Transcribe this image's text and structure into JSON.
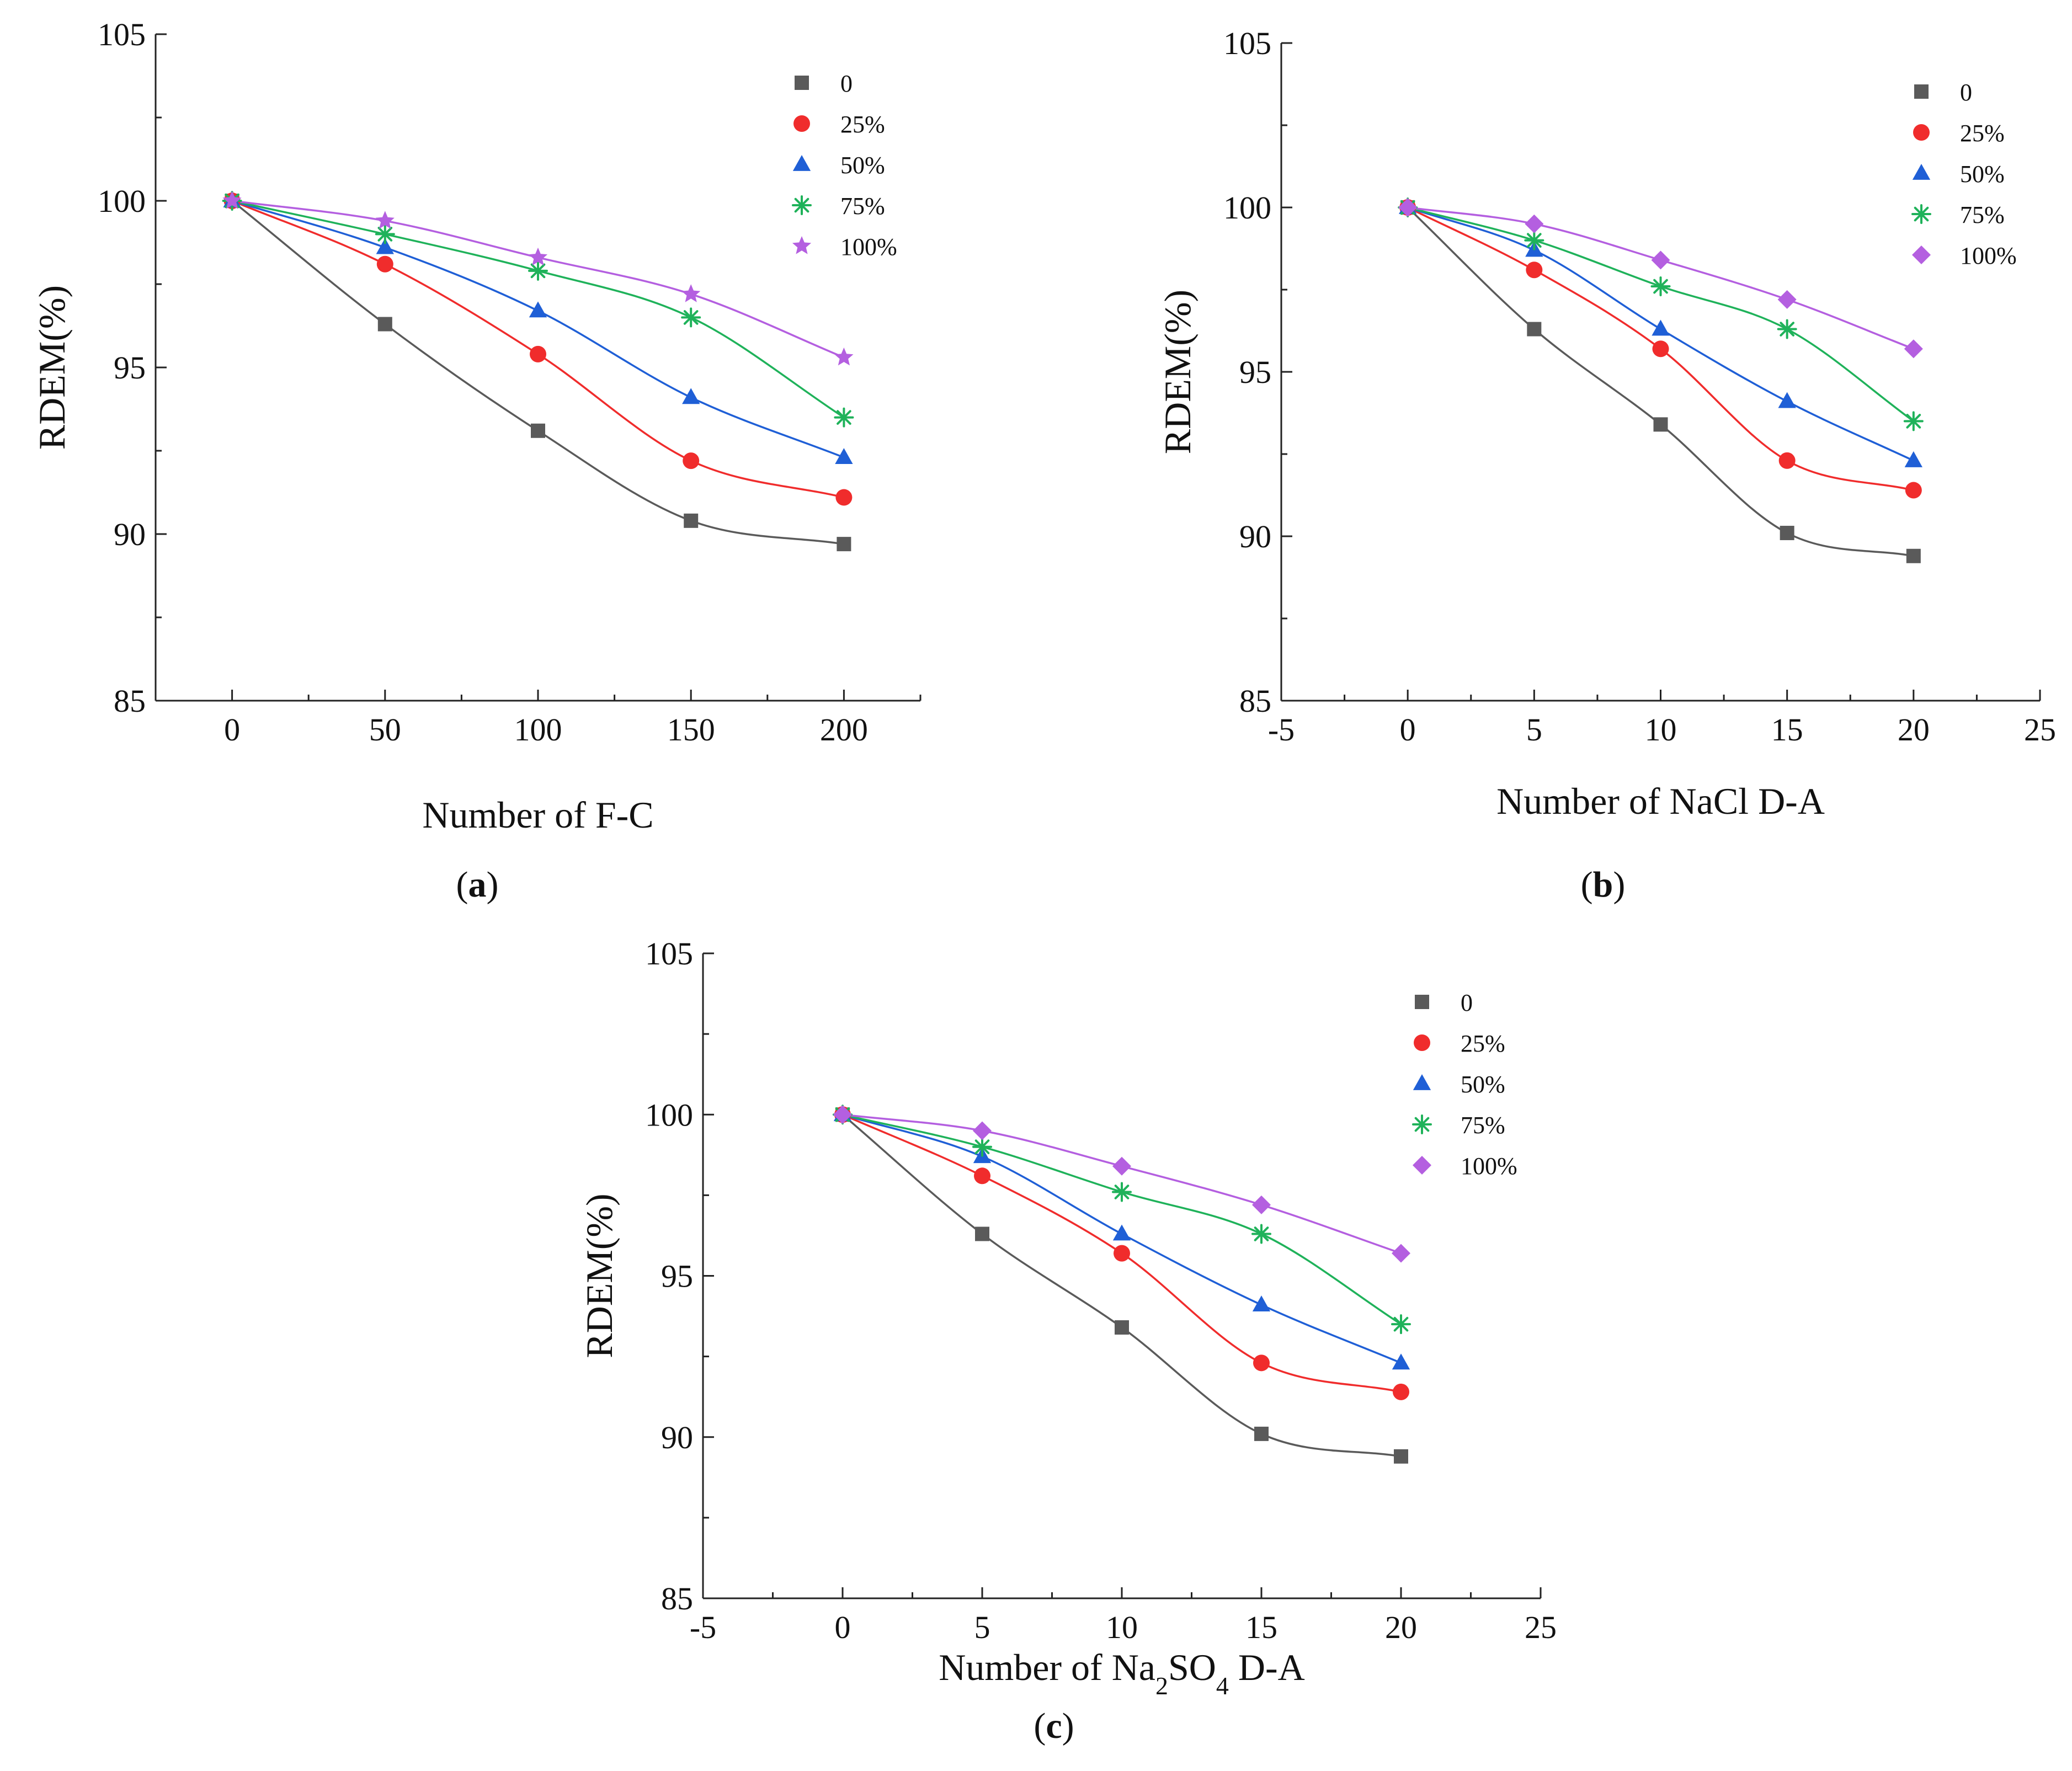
{
  "series_styles": [
    {
      "name": "0",
      "color": "#5a5a5a",
      "marker": "square"
    },
    {
      "name": "25%",
      "color": "#f02c2c",
      "marker": "circle"
    },
    {
      "name": "50%",
      "color": "#1f5fd6",
      "marker": "triangle"
    },
    {
      "name": "75%",
      "color": "#1fb25a",
      "marker": "asterisk"
    },
    {
      "name": "100%",
      "color": "#b45fe0",
      "marker": "star"
    }
  ],
  "chart_data": [
    {
      "type": "scatter",
      "panel_label": "a",
      "title": "",
      "xlabel": "Number of F-C",
      "ylabel": "RDEM(%)",
      "xlim": [
        -25,
        225
      ],
      "ylim": [
        85,
        105
      ],
      "xticks": [
        0,
        50,
        100,
        150,
        200
      ],
      "xtick_labels": [
        "0",
        "50",
        "100",
        "150",
        "200"
      ],
      "yticks": [
        85,
        90,
        95,
        100,
        105
      ],
      "ytick_labels": [
        "85",
        "90",
        "95",
        "100",
        "105"
      ],
      "legend_position": "top-right",
      "x": [
        0,
        50,
        100,
        150,
        200
      ],
      "series": [
        {
          "name": "0",
          "values": [
            100,
            96.3,
            93.1,
            90.4,
            89.7
          ]
        },
        {
          "name": "25%",
          "values": [
            100,
            98.1,
            95.4,
            92.2,
            91.1
          ]
        },
        {
          "name": "50%",
          "values": [
            100,
            98.6,
            96.7,
            94.1,
            92.3
          ]
        },
        {
          "name": "75%",
          "values": [
            100,
            99.0,
            97.9,
            96.5,
            93.5
          ]
        },
        {
          "name": "100%",
          "values": [
            100,
            99.4,
            98.3,
            97.2,
            95.3
          ]
        }
      ]
    },
    {
      "type": "scatter",
      "panel_label": "b",
      "title": "",
      "xlabel": "Number of NaCl D-A",
      "ylabel": "RDEM(%)",
      "xlim": [
        -5,
        25
      ],
      "ylim": [
        85,
        105
      ],
      "xticks": [
        -5,
        0,
        5,
        10,
        15,
        20,
        25
      ],
      "xtick_labels": [
        "-5",
        "0",
        "5",
        "10",
        "15",
        "20",
        "25"
      ],
      "yticks": [
        85,
        90,
        95,
        100,
        105
      ],
      "ytick_labels": [
        "85",
        "90",
        "95",
        "100",
        "105"
      ],
      "legend_position": "top-right",
      "x": [
        0,
        5,
        10,
        15,
        20
      ],
      "series": [
        {
          "name": "0",
          "values": [
            100,
            96.3,
            93.4,
            90.1,
            89.4
          ]
        },
        {
          "name": "25%",
          "values": [
            100,
            98.1,
            95.7,
            92.3,
            91.4
          ]
        },
        {
          "name": "50%",
          "values": [
            100,
            98.7,
            96.3,
            94.1,
            92.3
          ]
        },
        {
          "name": "75%",
          "values": [
            100,
            99.0,
            97.6,
            96.3,
            93.5
          ]
        },
        {
          "name": "100%",
          "values": [
            100,
            99.5,
            98.4,
            97.2,
            95.7
          ]
        }
      ]
    },
    {
      "type": "scatter",
      "panel_label": "c",
      "title": "",
      "xlabel": "Number of Na2SO4 D-A",
      "xlabel_parts": [
        {
          "text": "Number of Na"
        },
        {
          "text": "2",
          "sub": true
        },
        {
          "text": "SO"
        },
        {
          "text": "4",
          "sub": true
        },
        {
          "text": " D-A"
        }
      ],
      "ylabel": "RDEM(%)",
      "xlim": [
        -5,
        25
      ],
      "ylim": [
        85,
        105
      ],
      "xticks": [
        -5,
        0,
        5,
        10,
        15,
        20,
        25
      ],
      "xtick_labels": [
        "-5",
        "0",
        "5",
        "10",
        "15",
        "20",
        "25"
      ],
      "yticks": [
        85,
        90,
        95,
        100,
        105
      ],
      "ytick_labels": [
        "85",
        "90",
        "95",
        "100",
        "105"
      ],
      "legend_position": "top-right",
      "x": [
        0,
        5,
        10,
        15,
        20
      ],
      "series": [
        {
          "name": "0",
          "values": [
            100,
            96.3,
            93.4,
            90.1,
            89.4
          ]
        },
        {
          "name": "25%",
          "values": [
            100,
            98.1,
            95.7,
            92.3,
            91.4
          ]
        },
        {
          "name": "50%",
          "values": [
            100,
            98.7,
            96.3,
            94.1,
            92.3
          ]
        },
        {
          "name": "75%",
          "values": [
            100,
            99.0,
            97.6,
            96.3,
            93.5
          ]
        },
        {
          "name": "100%",
          "values": [
            100,
            99.5,
            98.4,
            97.2,
            95.7
          ]
        }
      ]
    }
  ]
}
